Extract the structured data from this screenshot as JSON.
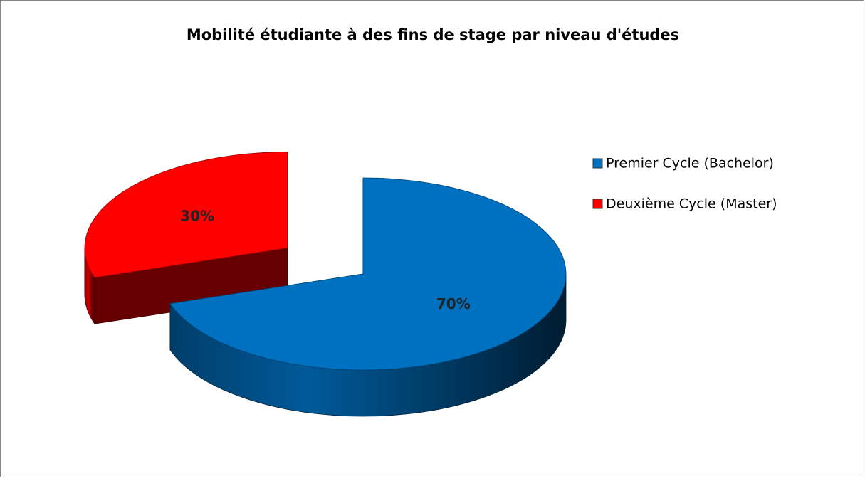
{
  "chart_data": {
    "type": "pie3d",
    "title": "Mobilité étudiante à des fins de stage par niveau d'études",
    "categories": [
      "Premier Cycle (Bachelor)",
      "Deuxième Cycle (Master)"
    ],
    "values": [
      70,
      30
    ],
    "value_labels": [
      "70%",
      "30%"
    ],
    "colors": [
      "#0070c0",
      "#ff0000"
    ],
    "legend": "right"
  }
}
